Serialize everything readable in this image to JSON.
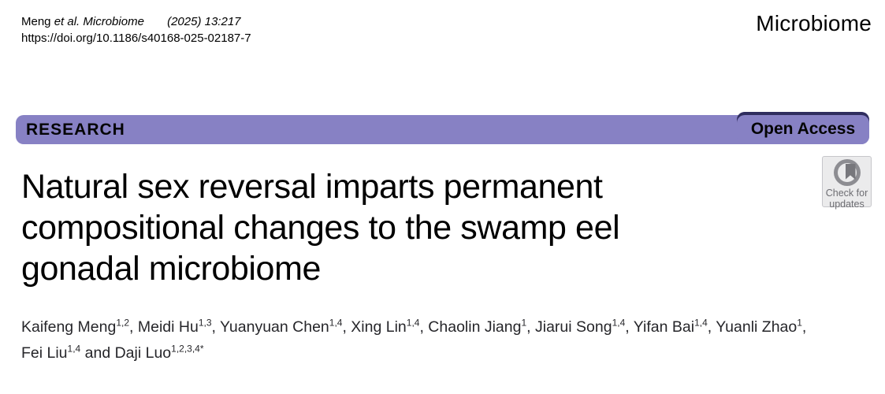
{
  "header": {
    "citation_segments": [
      {
        "text": "Meng ",
        "italic": false
      },
      {
        "text": "et al. Microbiome",
        "italic": true
      },
      {
        "text": "       (2025) 13:217",
        "italic": true
      }
    ],
    "doi": "https://doi.org/10.1186/s40168-025-02187-7",
    "journal_name": "Microbiome"
  },
  "banner": {
    "research_label": "RESEARCH",
    "open_access_label": "Open Access",
    "bar_color": "#8781c4",
    "badge_top_edge_color": "#2f2d5e"
  },
  "article": {
    "title_lines": [
      "Natural sex reversal imparts permanent",
      "compositional changes to the swamp eel",
      "gonadal microbiome"
    ],
    "author_segments": [
      {
        "t": "Kaifeng Meng",
        "s": "1,2"
      },
      {
        "t": ", Meidi Hu",
        "s": "1,3"
      },
      {
        "t": ", Yuanyuan Chen",
        "s": "1,4"
      },
      {
        "t": ", Xing Lin",
        "s": "1,4"
      },
      {
        "t": ", Chaolin Jiang",
        "s": "1"
      },
      {
        "t": ", Jiarui Song",
        "s": "1,4"
      },
      {
        "t": ", Yifan Bai",
        "s": "1,4"
      },
      {
        "t": ", Yuanli Zhao",
        "s": "1"
      },
      {
        "t": ", Fei Liu",
        "s": "1,4"
      },
      {
        "t": " and Daji Luo",
        "s": "1,2,3,4*"
      }
    ]
  },
  "check_updates": {
    "line1": "Check for",
    "line2": "updates"
  }
}
